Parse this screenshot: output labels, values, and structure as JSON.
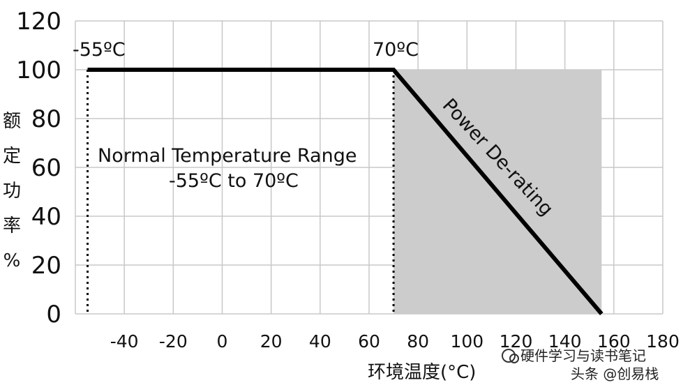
{
  "chart_data": {
    "type": "line",
    "x_tick_labels": [
      "-40",
      "-20",
      "0",
      "20",
      "40",
      "60",
      "80",
      "100",
      "120",
      "140",
      "160",
      "180"
    ],
    "y_tick_labels": [
      "0",
      "20",
      "40",
      "60",
      "80",
      "100",
      "120"
    ],
    "ylabel": "额定功率%",
    "xlabel": "环境温度(°C)",
    "xlim": [
      -60,
      180
    ],
    "ylim": [
      0,
      120
    ],
    "grid": true,
    "series": [
      {
        "points": [
          [
            -55,
            100
          ],
          [
            70,
            100
          ],
          [
            155,
            0
          ]
        ]
      }
    ],
    "vertical_markers": [
      -55,
      70
    ],
    "shaded_region": {
      "x": [
        70,
        155
      ],
      "y": [
        0,
        100
      ]
    },
    "annotations": {
      "left_marker": "-55ºC",
      "right_marker": "70ºC",
      "range_title": "Normal Temperature Range",
      "range_values": "-55ºC to 70ºC",
      "derating": "Power De-rating"
    },
    "colors": {
      "line": "#000000",
      "shade": "#cccccc",
      "grid": "#c8c8c8"
    }
  },
  "watermark": {
    "line1": "硬件学习与读书笔记",
    "line2": "头条 @创易栈"
  }
}
